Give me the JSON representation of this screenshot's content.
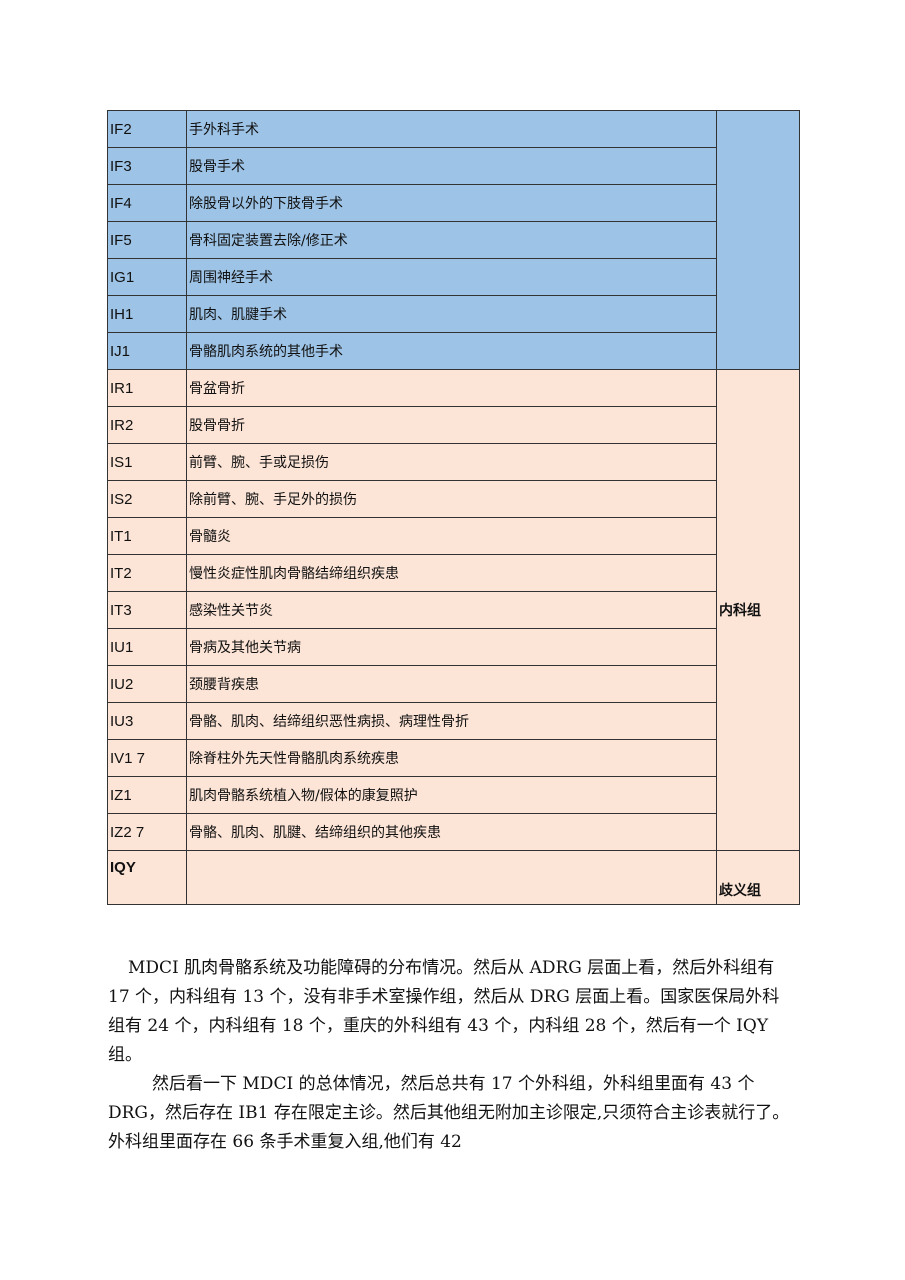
{
  "table": {
    "surgical_rows": [
      {
        "code": "IF2",
        "name": "手外科手术"
      },
      {
        "code": "IF3",
        "name": "股骨手术"
      },
      {
        "code": "IF4",
        "name": "除股骨以外的下肢骨手术"
      },
      {
        "code": "IF5",
        "name": "骨科固定装置去除/修正术"
      },
      {
        "code": "IG1",
        "name": "周围神经手术"
      },
      {
        "code": "IH1",
        "name": "肌肉、肌腱手术"
      },
      {
        "code": "IJ1",
        "name": "骨骼肌肉系统的其他手术"
      }
    ],
    "medical_rows": [
      {
        "code": "IR1",
        "name": "骨盆骨折"
      },
      {
        "code": "IR2",
        "name": "股骨骨折"
      },
      {
        "code": "IS1",
        "name": "前臂、腕、手或足损伤"
      },
      {
        "code": "IS2",
        "name": "除前臂、腕、手足外的损伤"
      },
      {
        "code": "IT1",
        "name": "骨髓炎"
      },
      {
        "code": "IT2",
        "name": "慢性炎症性肌肉骨骼结缔组织疾患"
      },
      {
        "code": "IT3",
        "name": "感染性关节炎"
      },
      {
        "code": "IU1",
        "name": "骨病及其他关节病"
      },
      {
        "code": "IU2",
        "name": "颈腰背疾患"
      },
      {
        "code": "IU3",
        "name": "骨骼、肌肉、结缔组织恶性病损、病理性骨折"
      },
      {
        "code": "IV1 7",
        "name": "除脊柱外先天性骨骼肌肉系统疾患"
      },
      {
        "code": "IZ1",
        "name": "肌肉骨骼系统植入物/假体的康复照护"
      },
      {
        "code": "IZ2 7",
        "name": "骨骼、肌肉、肌腱、结缔组织的其他疾患"
      }
    ],
    "medical_group": "内科组",
    "ambiguous_row": {
      "code": "IQY",
      "name": "",
      "group": "歧义组"
    },
    "colors": {
      "surgical": "#9dc3e6",
      "medical": "#fce4d6"
    }
  },
  "paragraphs": [
    "MDCI 肌肉骨骼系统及功能障碍的分布情况。然后从 ADRG 层面上看，然后外科组有 17 个，内科组有 13 个，没有非手术室操作组，然后从 DRG 层面上看。国家医保局外科组有 24 个，内科组有 18 个，重庆的外科组有 43 个，内科组 28 个，然后有一个 IQY 组。",
    "然后看一下 MDCI 的总体情况，然后总共有 17 个外科组，外科组里面有 43 个 DRG，然后存在 IB1 存在限定主诊。然后其他组无附加主诊限定,只须符合主诊表就行了。外科组里面存在 66 条手术重复入组,他们有 42"
  ]
}
